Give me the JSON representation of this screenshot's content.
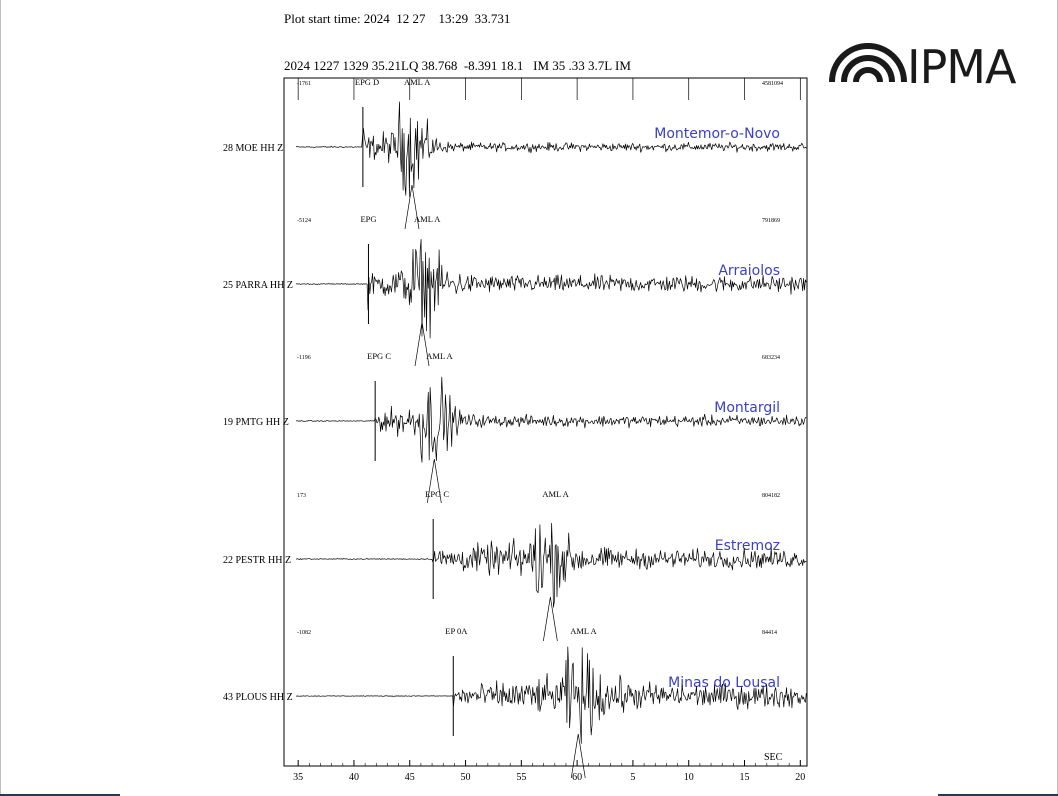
{
  "header": {
    "plot_start": "Plot start time: 2024  12 27    13:29  33.731",
    "event_line": "2024 1227 1329 35.21LQ 38.768  -8.391 18.1   IM 35 .33 3.7L IM"
  },
  "logo": {
    "text": "IPMA",
    "icon": "ipma-arcs-icon",
    "color": "#1a1a1a"
  },
  "colors": {
    "trace": "#000000",
    "site_name": "#3b40c8",
    "frame": "#1f3b57"
  },
  "chart_data": {
    "type": "line",
    "xlabel": "SEC",
    "time_axis": {
      "start_seconds": 33.731,
      "range_seconds": [
        33.731,
        80.6
      ],
      "ticks": [
        {
          "t": 35,
          "label": "35"
        },
        {
          "t": 40,
          "label": "40"
        },
        {
          "t": 45,
          "label": "45"
        },
        {
          "t": 50,
          "label": "50"
        },
        {
          "t": 55,
          "label": "55"
        },
        {
          "t": 60,
          "label": "60"
        },
        {
          "t": 65,
          "label": "5"
        },
        {
          "t": 70,
          "label": "10"
        },
        {
          "t": 75,
          "label": "15"
        },
        {
          "t": 80,
          "label": "20"
        }
      ]
    },
    "series": [
      {
        "name": "Montemor-o-Novo",
        "label": "28  MOE     HH Z",
        "amp_left": "-1761",
        "amp_right": "4581094",
        "picks": [
          {
            "label": "EPG   D",
            "t": 40.8
          },
          {
            "label": "AML  A",
            "t": 45.2
          }
        ],
        "onset": 40.8,
        "peak": 45.2,
        "peak_amp": 0.95,
        "noise": 0.03,
        "coda": 0.09,
        "decay": 2.8
      },
      {
        "name": "Arraiolos",
        "label": "25  PARRA   HH Z",
        "amp_left": "-5124",
        "amp_right": "791869",
        "picks": [
          {
            "label": "EPG",
            "t": 41.3
          },
          {
            "label": "AML  A",
            "t": 46.1
          }
        ],
        "onset": 41.3,
        "peak": 46.1,
        "peak_amp": 0.95,
        "noise": 0.02,
        "coda": 0.18,
        "decay": 4.5
      },
      {
        "name": "Montargil",
        "label": "19  PMTG    HH Z",
        "amp_left": "-1196",
        "amp_right": "683234",
        "picks": [
          {
            "label": "EPG   C",
            "t": 41.9
          },
          {
            "label": "AML  A",
            "t": 47.2
          }
        ],
        "onset": 41.9,
        "peak": 47.2,
        "peak_amp": 0.95,
        "noise": 0.02,
        "coda": 0.12,
        "decay": 3.2
      },
      {
        "name": "Estremoz",
        "label": "22  PESTR   HH Z",
        "amp_left": "173",
        "amp_right": "804182",
        "picks": [
          {
            "label": "EPG   C",
            "t": 47.1
          },
          {
            "label": "AML  A",
            "t": 57.6
          }
        ],
        "onset": 47.1,
        "peak": 57.0,
        "peak_amp": 0.95,
        "noise": 0.02,
        "coda": 0.2,
        "decay": 6.0
      },
      {
        "name": "Minas do Lousal",
        "label": "43  PLOUS   HH Z",
        "amp_left": "-1082",
        "amp_right": "84414",
        "picks": [
          {
            "label": "EP   0A",
            "t": 48.9
          },
          {
            "label": "AML  A",
            "t": 60.1
          }
        ],
        "onset": 48.9,
        "peak": 60.0,
        "peak_amp": 0.95,
        "noise": 0.015,
        "coda": 0.25,
        "decay": 7.0
      }
    ]
  }
}
